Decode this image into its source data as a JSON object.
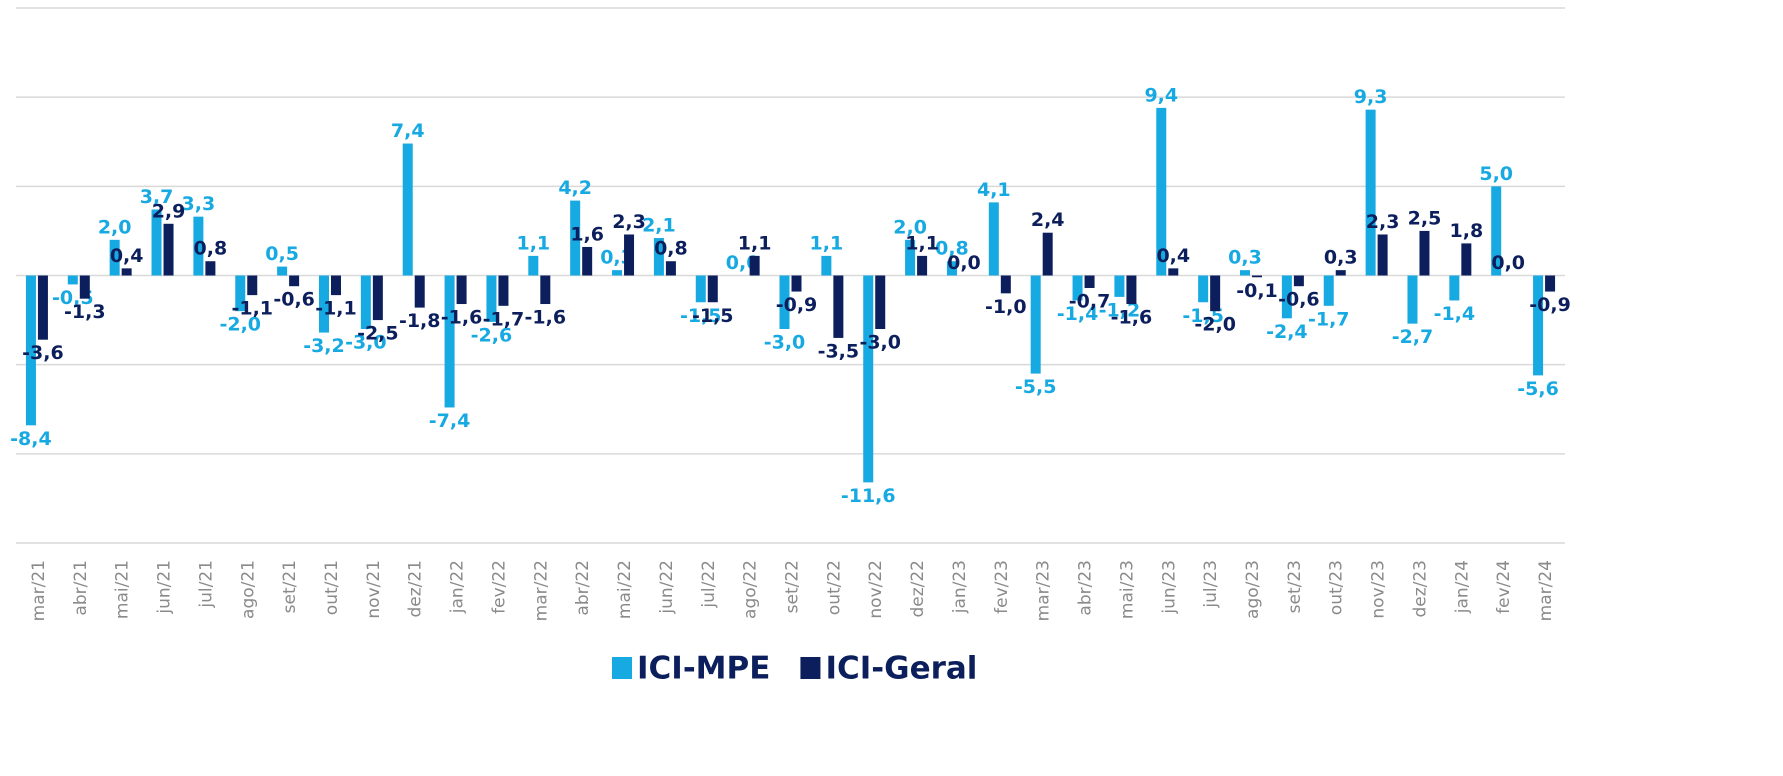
{
  "chart_data": {
    "type": "bar",
    "categories": [
      "mar/21",
      "abr/21",
      "mai/21",
      "jun/21",
      "jul/21",
      "ago/21",
      "set/21",
      "out/21",
      "nov/21",
      "dez/21",
      "jan/22",
      "fev/22",
      "mar/22",
      "abr/22",
      "mai/22",
      "jun/22",
      "jul/22",
      "ago/22",
      "set/22",
      "out/22",
      "nov/22",
      "dez/22",
      "jan/23",
      "fev/23",
      "mar/23",
      "abr/23",
      "mai/23",
      "jun/23",
      "jul/23",
      "ago/23",
      "set/23",
      "out/23",
      "nov/23",
      "dez/23",
      "jan/24",
      "fev/24",
      "mar/24"
    ],
    "series": [
      {
        "name": "ICI-MPE",
        "color": "#17a9e1",
        "values": [
          -8.4,
          -0.5,
          2.0,
          3.7,
          3.3,
          -2.0,
          0.5,
          -3.2,
          -3.0,
          7.4,
          -7.4,
          -2.6,
          1.1,
          4.2,
          0.3,
          2.1,
          -1.5,
          0.0,
          -3.0,
          1.1,
          -11.6,
          2.0,
          0.8,
          4.1,
          -5.5,
          -1.4,
          -1.2,
          9.4,
          -1.5,
          0.3,
          -2.4,
          -1.7,
          9.3,
          -2.7,
          -1.4,
          5.0,
          -5.6
        ],
        "value_labels": [
          "-8,4",
          "-0,5",
          "2,0",
          "3,7",
          "3,3",
          "-2,0",
          "0,5",
          "-3,2",
          "-3,0",
          "7,4",
          "-7,4",
          "-2,6",
          "1,1",
          "4,2",
          "0,3",
          "2,1",
          "-1,5",
          "0,0",
          "-3,0",
          "1,1",
          "-11,6",
          "2,0",
          "0,8",
          "4,1",
          "-5,5",
          "-1,4",
          "-1,2",
          "9,4",
          "-1,5",
          "0,3",
          "-2,4",
          "-1,7",
          "9,3",
          "-2,7",
          "-1,4",
          "5,0",
          "-5,6"
        ]
      },
      {
        "name": "ICI-Geral",
        "color": "#0c1f5c",
        "values": [
          -3.6,
          -1.3,
          0.4,
          2.9,
          0.8,
          -1.1,
          -0.6,
          -1.1,
          -2.5,
          -1.8,
          -1.6,
          -1.7,
          -1.6,
          1.6,
          2.3,
          0.8,
          -1.5,
          1.1,
          -0.9,
          -3.5,
          -3.0,
          1.1,
          0.0,
          -1.0,
          2.4,
          -0.7,
          -1.6,
          0.4,
          -2.0,
          -0.1,
          -0.6,
          0.3,
          2.3,
          2.5,
          1.8,
          0.0,
          -0.9
        ],
        "value_labels": [
          "-3,6",
          "-1,3",
          "0,4",
          "2,9",
          "0,8",
          "-1,1",
          "-0,6",
          "-1,1",
          "-2,5",
          "-1,8",
          "-1,6",
          "-1,7",
          "-1,6",
          "1,6",
          "2,3",
          "0,8",
          "-1,5",
          "1,1",
          "-0,9",
          "-3,5",
          "-3,0",
          "1,1",
          "0,0",
          "-1,0",
          "2,4",
          "-0,7",
          "-1,6",
          "0,4",
          "-2,0",
          "-0,1",
          "-0,6",
          "0,3",
          "2,3",
          "2,5",
          "1,8",
          "0,0",
          "-0,9"
        ]
      }
    ],
    "ylim": [
      -15,
      15
    ],
    "yticks": [
      -15,
      -10,
      -5,
      0,
      5,
      10,
      15
    ],
    "grid": true,
    "legend": "bottom"
  }
}
